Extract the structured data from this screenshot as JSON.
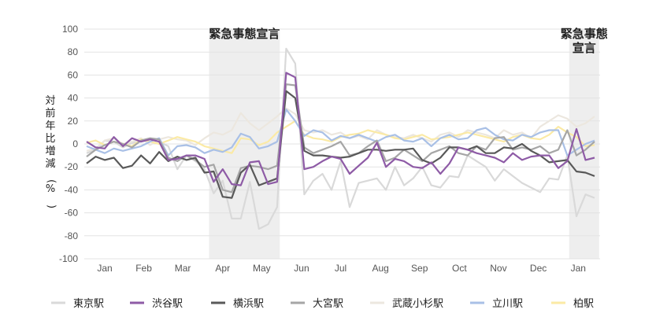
{
  "chart_data": {
    "type": "line",
    "title": "",
    "ylabel": "対前年比増減(%)",
    "ylim": [
      -100,
      100
    ],
    "yticks": [
      -100,
      -80,
      -60,
      -40,
      -20,
      0,
      20,
      40,
      60,
      80,
      100
    ],
    "xticks": [
      "Jan",
      "Feb",
      "Mar",
      "Apr",
      "May",
      "Jun",
      "Jul",
      "Aug",
      "Sep",
      "Oct",
      "Nov",
      "Dec",
      "Jan"
    ],
    "grid": true,
    "legend_position": "bottom",
    "annotations": [
      {
        "text": "緊急事態宣言",
        "start_week": 13.5,
        "end_week": 21.3
      },
      {
        "text": "緊急事態\n宣言",
        "start_week": 53.2,
        "end_week": 56.5
      }
    ],
    "x_weeks": [
      0,
      1,
      2,
      3,
      4,
      5,
      6,
      7,
      8,
      9,
      10,
      11,
      12,
      13,
      14,
      15,
      16,
      17,
      18,
      19,
      20,
      21,
      22,
      23,
      24,
      25,
      26,
      27,
      28,
      29,
      30,
      31,
      32,
      33,
      34,
      35,
      36,
      37,
      38,
      39,
      40,
      41,
      42,
      43,
      44,
      45,
      46,
      47,
      48,
      49,
      50,
      51,
      52,
      53,
      54,
      55,
      56
    ],
    "series": [
      {
        "name": "東京駅",
        "color": "#d9d9d9",
        "values": [
          -4,
          -8,
          -2,
          3,
          -5,
          0,
          -3,
          1,
          5,
          -2,
          -20,
          -12,
          -18,
          -25,
          -42,
          -33,
          -65,
          -65,
          -35,
          -73,
          -68,
          -55,
          82,
          52,
          -44,
          -32,
          -25,
          -40,
          -20,
          -55,
          -33,
          -32,
          -30,
          -38,
          -18,
          -35,
          -30,
          -22,
          -36,
          -38,
          -28,
          -30,
          -15,
          -20,
          -22,
          -30,
          -20,
          -28,
          -35,
          -38,
          -40,
          -30,
          -30,
          -10,
          -62,
          -42,
          -45
        ],
        "render": [
          -8,
          -5,
          3,
          2,
          -3,
          1,
          2,
          4,
          2,
          -2,
          -22,
          -10,
          -15,
          -22,
          -43,
          -32,
          -65,
          -65,
          -33,
          -74,
          -70,
          -55,
          83,
          70,
          -44,
          -32,
          -26,
          -40,
          -15,
          -55,
          -34,
          -32,
          -30,
          -40,
          -20,
          -36,
          -30,
          -20,
          -36,
          -38,
          -28,
          -29,
          -10,
          -15,
          -20,
          -32,
          -22,
          -28,
          -34,
          -38,
          -42,
          -30,
          -31,
          -10,
          -63,
          -44,
          -47
        ]
      },
      {
        "name": "渋谷駅",
        "color": "#8e5ba6",
        "values": [
          3,
          -3,
          -5,
          6,
          -2,
          5,
          2,
          3,
          3,
          -14,
          -13,
          -11,
          -10,
          -14,
          -33,
          -22,
          -36,
          -37,
          -18,
          -16,
          -35,
          -32,
          63,
          58,
          -21,
          -20,
          -15,
          -12,
          -13,
          -26,
          -19,
          -12,
          0,
          -20,
          -13,
          -15,
          -20,
          -20,
          -16,
          -25,
          -17,
          -5,
          -5,
          -8,
          -10,
          -12,
          -16,
          -8,
          -15,
          -12,
          -11,
          -11,
          -22,
          -16,
          14,
          -15,
          -12
        ],
        "render": [
          2,
          -3,
          -4,
          6,
          -2,
          5,
          2,
          4,
          2,
          -14,
          -13,
          -10,
          -10,
          -13,
          -33,
          -22,
          -35,
          -36,
          -16,
          -15,
          -35,
          -33,
          62,
          58,
          -22,
          -20,
          -15,
          -11,
          -13,
          -26,
          -19,
          -12,
          1,
          -20,
          -13,
          -15,
          -20,
          -21,
          -16,
          -26,
          -17,
          -3,
          -5,
          -8,
          -10,
          -12,
          -16,
          -8,
          -14,
          -11,
          -10,
          -10,
          -21,
          -15,
          13,
          -14,
          -12
        ]
      },
      {
        "name": "横浜駅",
        "color": "#595959",
        "values": [
          -17,
          -11,
          -14,
          -12,
          -21,
          -19,
          -10,
          -17,
          -7,
          -15,
          -11,
          -14,
          -12,
          -25,
          -24,
          -46,
          -47,
          -25,
          -17,
          -36,
          -33,
          -30,
          47,
          41,
          -6,
          -10,
          -10,
          -11,
          -12,
          -11,
          -8,
          -5,
          -5,
          -6,
          -5,
          -5,
          -4,
          -14,
          -17,
          -12,
          -3,
          -3,
          -5,
          -2,
          -8,
          -8,
          -3,
          -4,
          0,
          -6,
          -10,
          -16,
          -15,
          -14,
          -24,
          -25,
          -28
        ],
        "render": [
          -17,
          -11,
          -14,
          -12,
          -21,
          -19,
          -10,
          -17,
          -7,
          -15,
          -11,
          -14,
          -12,
          -25,
          -24,
          -46,
          -47,
          -25,
          -18,
          -36,
          -33,
          -30,
          46,
          40,
          -6,
          -10,
          -10,
          -11,
          -12,
          -11,
          -8,
          -5,
          -5,
          -6,
          -5,
          -5,
          -4,
          -14,
          -17,
          -12,
          -3,
          -3,
          -5,
          -2,
          -8,
          -8,
          -3,
          -4,
          0,
          -6,
          -10,
          -16,
          -15,
          -14,
          -24,
          -25,
          -28
        ]
      },
      {
        "name": "大宮駅",
        "color": "#a6a6a6",
        "values": [
          -10,
          -5,
          -2,
          2,
          0,
          -3,
          3,
          5,
          4,
          -12,
          -15,
          -10,
          -14,
          -20,
          -18,
          -40,
          -42,
          -22,
          -19,
          -20,
          -22,
          -20,
          52,
          50,
          -3,
          -8,
          -5,
          -2,
          2,
          -10,
          -8,
          -2,
          2,
          -15,
          -12,
          -5,
          -10,
          -15,
          -8,
          -5,
          -2,
          -8,
          -10,
          -2,
          -5,
          5,
          5,
          -5,
          -3,
          -5,
          -2,
          -8,
          -5,
          12,
          -10,
          -5,
          3
        ],
        "render": [
          -11,
          -5,
          -1,
          2,
          0,
          -3,
          3,
          5,
          4,
          -12,
          -15,
          -10,
          -14,
          -20,
          -18,
          -40,
          -42,
          -21,
          -19,
          -20,
          -22,
          -19,
          52,
          51,
          -3,
          -8,
          -5,
          -2,
          2,
          -10,
          -8,
          -2,
          3,
          -15,
          -12,
          -5,
          -10,
          -15,
          -8,
          -5,
          -2,
          -8,
          -10,
          -2,
          -5,
          5,
          6,
          -5,
          -3,
          -5,
          -2,
          -8,
          -5,
          12,
          -10,
          -5,
          2
        ]
      },
      {
        "name": "武蔵小杉駅",
        "color": "#ece7df",
        "values": [
          -6,
          -4,
          3,
          5,
          0,
          2,
          5,
          -1,
          4,
          6,
          4,
          3,
          -1,
          5,
          10,
          8,
          12,
          25,
          18,
          12,
          18,
          25,
          30,
          25,
          12,
          10,
          12,
          8,
          10,
          5,
          7,
          4,
          12,
          8,
          6,
          5,
          8,
          5,
          2,
          8,
          10,
          6,
          12,
          10,
          8,
          5,
          12,
          8,
          10,
          5,
          15,
          20,
          25,
          22,
          15,
          18,
          25
        ],
        "render": [
          -6,
          -4,
          3,
          5,
          0,
          2,
          5,
          -1,
          4,
          6,
          4,
          3,
          -1,
          5,
          10,
          8,
          12,
          27,
          18,
          12,
          18,
          24,
          31,
          26,
          12,
          10,
          12,
          8,
          10,
          5,
          7,
          4,
          12,
          8,
          6,
          5,
          8,
          5,
          2,
          8,
          10,
          6,
          12,
          10,
          8,
          5,
          12,
          8,
          10,
          5,
          15,
          20,
          25,
          22,
          15,
          18,
          24
        ]
      },
      {
        "name": "立川駅",
        "color": "#a9c0e6",
        "values": [
          -2,
          -5,
          -8,
          -4,
          -6,
          -4,
          -2,
          2,
          5,
          -10,
          -2,
          -1,
          -3,
          -8,
          -5,
          -7,
          -3,
          8,
          6,
          -3,
          -2,
          2,
          30,
          20,
          7,
          12,
          10,
          3,
          7,
          5,
          8,
          5,
          2,
          6,
          8,
          3,
          2,
          5,
          -2,
          5,
          8,
          4,
          5,
          12,
          14,
          8,
          4,
          3,
          8,
          6,
          10,
          12,
          12,
          -10,
          -5,
          0,
          3
        ],
        "render": [
          -2,
          -5,
          -8,
          -4,
          -6,
          -4,
          -2,
          2,
          5,
          -10,
          -2,
          -1,
          -3,
          -8,
          -5,
          -7,
          -3,
          9,
          6,
          -4,
          -2,
          2,
          30,
          20,
          7,
          12,
          10,
          3,
          7,
          5,
          8,
          5,
          2,
          6,
          8,
          3,
          2,
          5,
          -2,
          5,
          8,
          4,
          5,
          12,
          14,
          8,
          4,
          3,
          8,
          6,
          10,
          12,
          12,
          -10,
          -5,
          0,
          3
        ]
      },
      {
        "name": "柏駅",
        "color": "#fbeaa5",
        "values": [
          1,
          3,
          -1,
          2,
          0,
          -2,
          4,
          2,
          0,
          3,
          6,
          4,
          2,
          -2,
          -4,
          -6,
          -8,
          5,
          4,
          -1,
          2,
          10,
          15,
          20,
          8,
          5,
          4,
          2,
          6,
          8,
          9,
          12,
          10,
          8,
          5,
          4,
          6,
          8,
          4,
          5,
          6,
          8,
          10,
          8,
          6,
          4,
          2,
          6,
          8,
          5,
          4,
          8,
          15,
          10,
          6,
          -2,
          -1
        ],
        "render": [
          1,
          3,
          -1,
          2,
          0,
          -2,
          4,
          2,
          0,
          3,
          6,
          4,
          2,
          -2,
          -4,
          -6,
          -8,
          5,
          4,
          -1,
          2,
          10,
          15,
          20,
          8,
          5,
          4,
          2,
          6,
          8,
          9,
          12,
          10,
          8,
          5,
          4,
          6,
          8,
          4,
          5,
          6,
          8,
          10,
          8,
          6,
          4,
          2,
          6,
          8,
          5,
          4,
          8,
          15,
          10,
          6,
          -2,
          -1
        ]
      }
    ]
  }
}
